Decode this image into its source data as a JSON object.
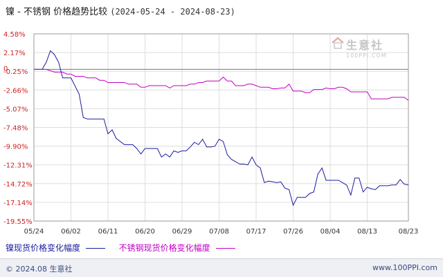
{
  "header": {
    "title": "镍 - 不锈钢 价格趋势比较",
    "date_range": "(2024-05-24 - 2024-08-23)"
  },
  "watermark": {
    "text": "生意社",
    "sub": "100PPI.COM"
  },
  "legend": {
    "series1": "镍现货价格变化幅度",
    "series2": "不锈钢现货价格变化幅度"
  },
  "footer": {
    "copyright": "© 2024.08 生意社",
    "site": "www.100PPI.com"
  },
  "chart_data": {
    "type": "line",
    "ytick_labels": [
      "4.58%",
      "2.17%",
      "-0.25%",
      "-2.66%",
      "-5.07%",
      "-7.48%",
      "-9.90%",
      "-12.31%",
      "-14.72%",
      "-17.14%",
      "-19.55%"
    ],
    "ytick_values": [
      4.58,
      2.17,
      -0.25,
      -2.66,
      -5.07,
      -7.48,
      -9.9,
      -12.31,
      -14.72,
      -17.14,
      -19.55
    ],
    "zero_label": "0",
    "ylim": [
      -19.55,
      4.58
    ],
    "xlim": [
      0,
      91
    ],
    "xtick_labels": [
      "05/24",
      "06/02",
      "06/11",
      "06/20",
      "06/29",
      "07/08",
      "07/17",
      "07/26",
      "08/04",
      "08/13",
      "08/23"
    ],
    "xtick_days": [
      0,
      9,
      18,
      27,
      36,
      45,
      54,
      63,
      72,
      81,
      91
    ],
    "grid": true,
    "legend_position": "bottom",
    "series": [
      {
        "name": "镍现货价格变化幅度",
        "color": "#1a1aa0",
        "x": [
          0,
          2,
          3,
          4,
          5,
          6,
          7,
          9,
          11,
          12,
          13,
          17,
          18,
          19,
          20,
          22,
          24,
          25,
          26,
          27,
          28,
          30,
          31,
          32,
          33,
          34,
          35,
          36,
          37,
          38,
          39,
          40,
          41,
          42,
          43,
          44,
          45,
          46,
          47,
          48,
          49,
          50,
          51,
          52,
          53,
          54,
          55,
          56,
          57,
          58,
          59,
          60,
          61,
          62,
          63,
          64,
          65,
          66,
          67,
          68,
          69,
          70,
          71,
          72,
          73,
          74,
          75,
          76,
          77,
          78,
          79,
          80,
          81,
          82,
          83,
          84,
          85,
          86,
          87,
          88,
          89,
          90,
          91
        ],
        "y": [
          0.0,
          0.0,
          0.9,
          2.4,
          1.9,
          0.9,
          -1.1,
          -1.1,
          -3.2,
          -6.2,
          -6.4,
          -6.4,
          -8.3,
          -7.8,
          -8.9,
          -9.7,
          -9.7,
          -10.2,
          -10.9,
          -10.2,
          -10.2,
          -10.2,
          -11.3,
          -10.9,
          -11.3,
          -10.5,
          -10.7,
          -10.5,
          -10.5,
          -10.0,
          -9.4,
          -9.7,
          -9.0,
          -10.0,
          -10.0,
          -9.9,
          -9.0,
          -9.3,
          -11.0,
          -11.6,
          -11.9,
          -12.2,
          -12.2,
          -12.3,
          -11.3,
          -12.3,
          -12.7,
          -14.6,
          -14.4,
          -14.5,
          -14.6,
          -14.5,
          -15.3,
          -15.5,
          -17.5,
          -16.5,
          -16.5,
          -16.5,
          -16.0,
          -15.8,
          -13.5,
          -12.7,
          -14.3,
          -14.3,
          -14.3,
          -14.3,
          -14.6,
          -14.9,
          -16.2,
          -14.0,
          -14.0,
          -15.8,
          -15.2,
          -15.4,
          -15.5,
          -15.0,
          -15.0,
          -15.0,
          -14.9,
          -14.9,
          -14.2,
          -14.8,
          -14.9
        ]
      },
      {
        "name": "不锈钢现货价格变化幅度",
        "color": "#c000c0",
        "x": [
          0,
          3,
          5,
          6,
          7,
          8,
          9,
          10,
          11,
          12,
          13,
          14,
          15,
          16,
          17,
          18,
          19,
          20,
          21,
          22,
          23,
          24,
          25,
          26,
          27,
          28,
          29,
          30,
          31,
          32,
          33,
          34,
          35,
          36,
          37,
          38,
          39,
          40,
          41,
          42,
          43,
          44,
          45,
          46,
          47,
          48,
          49,
          50,
          51,
          52,
          53,
          54,
          55,
          56,
          57,
          58,
          59,
          60,
          61,
          62,
          63,
          64,
          65,
          66,
          67,
          68,
          69,
          70,
          71,
          72,
          73,
          74,
          75,
          76,
          77,
          78,
          79,
          80,
          81,
          82,
          83,
          84,
          85,
          86,
          87,
          88,
          89,
          90,
          91
        ],
        "y": [
          0.0,
          0.0,
          -0.35,
          -0.35,
          -0.35,
          -0.6,
          -0.6,
          -0.9,
          -0.9,
          -0.9,
          -1.1,
          -1.1,
          -1.1,
          -1.4,
          -1.4,
          -1.7,
          -1.7,
          -1.7,
          -1.7,
          -1.7,
          -1.9,
          -1.9,
          -1.9,
          -2.3,
          -2.3,
          -2.1,
          -2.1,
          -2.1,
          -2.1,
          -2.1,
          -2.4,
          -2.1,
          -2.1,
          -2.1,
          -2.1,
          -1.9,
          -1.9,
          -1.7,
          -1.7,
          -1.5,
          -1.5,
          -1.5,
          -1.5,
          -1.0,
          -1.5,
          -1.5,
          -2.1,
          -2.1,
          -2.1,
          -1.9,
          -1.9,
          -2.1,
          -2.3,
          -2.3,
          -2.3,
          -2.5,
          -2.5,
          -2.4,
          -2.4,
          -1.9,
          -2.8,
          -2.8,
          -2.8,
          -3.0,
          -3.0,
          -2.6,
          -2.6,
          -2.6,
          -2.4,
          -2.5,
          -2.5,
          -2.3,
          -2.3,
          -2.5,
          -2.9,
          -2.9,
          -2.9,
          -2.9,
          -2.9,
          -3.8,
          -3.8,
          -3.8,
          -3.8,
          -3.8,
          -3.6,
          -3.6,
          -3.6,
          -3.6,
          -4.0
        ]
      }
    ]
  }
}
